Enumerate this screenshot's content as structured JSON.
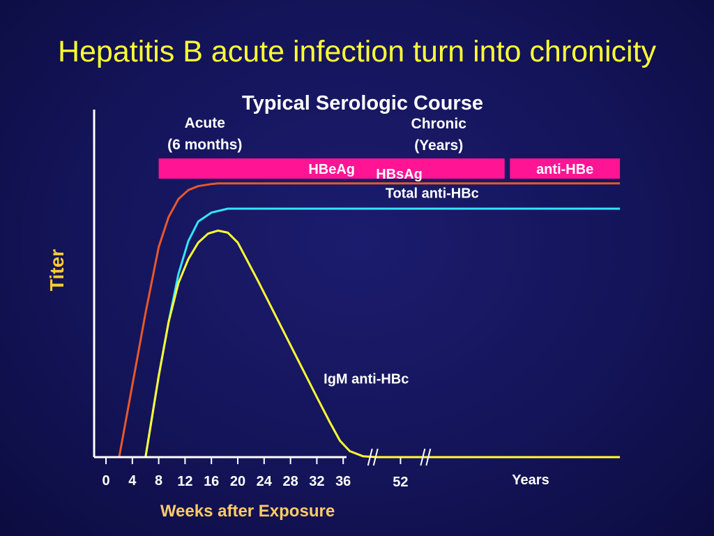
{
  "slide": {
    "title": "Hepatitis B acute infection turn into chronicity"
  },
  "colors": {
    "background": "#14145a",
    "title": "#ffff33",
    "axis_title": "#ffcc66",
    "bars": "#ff1493",
    "hbsag": "#e8582a",
    "total_anti_hbc": "#33e5ff",
    "igm_anti_hbc": "#ffff33",
    "text": "#ffffff"
  },
  "chart_data": {
    "type": "line",
    "title": "Typical Serologic Course",
    "xlabel": "Weeks after Exposure",
    "ylabel": "Titer",
    "x_ticks": [
      0,
      4,
      8,
      12,
      16,
      20,
      24,
      28,
      32,
      36,
      52
    ],
    "x_tick_labels": [
      "0",
      "4",
      "8",
      "12",
      "16",
      "20",
      "24",
      "28",
      "32",
      "36",
      "52"
    ],
    "x_extra_label": "Years",
    "xlim": [
      0,
      78
    ],
    "ylim": [
      0,
      100
    ],
    "axis_breaks": [
      40.5,
      48.5
    ],
    "phases": [
      {
        "label_line1": "Acute",
        "label_line2": "(6 months)",
        "x": 15
      },
      {
        "label_line1": "Chronic",
        "label_line2": "(Years)",
        "x": 50.5
      }
    ],
    "bars": [
      {
        "label": "HBeAg",
        "x_start": 8,
        "x_end": 60.5
      },
      {
        "label": "anti-HBe",
        "x_start": 61.3,
        "x_end": 78
      }
    ],
    "series": [
      {
        "name": "HBsAg",
        "x": [
          2,
          4,
          6,
          8,
          9.5,
          11,
          12.5,
          14,
          16,
          17,
          20,
          40,
          78
        ],
        "y": [
          0,
          24,
          48,
          70,
          80,
          86,
          89,
          90.3,
          91,
          91.2,
          91.2,
          91.2,
          91.2
        ]
      },
      {
        "name": "Total anti-HBc",
        "x": [
          6,
          8,
          9.5,
          11,
          12.5,
          14,
          16,
          18.5,
          20,
          40,
          78
        ],
        "y": [
          0,
          27,
          45,
          61,
          72,
          78.5,
          81.5,
          82.8,
          82.8,
          82.8,
          82.8
        ]
      },
      {
        "name": "IgM anti-HBc",
        "x": [
          6,
          8,
          9.5,
          11,
          12.5,
          14,
          15.5,
          17,
          18.5,
          20,
          23,
          26,
          29,
          32,
          34,
          35.5,
          37,
          39,
          41,
          48,
          52,
          60,
          78
        ],
        "y": [
          0,
          27,
          45,
          58,
          66,
          71.5,
          74.5,
          75.5,
          74.8,
          71.5,
          59,
          46,
          33,
          20,
          11.5,
          5.5,
          2,
          0.3,
          0,
          0,
          0,
          0,
          0
        ]
      }
    ],
    "series_labels": [
      {
        "name": "HBsAg",
        "x": 44.5,
        "y": 92.8
      },
      {
        "name": "Total anti-HBc",
        "x": 49.5,
        "y": 86.4
      },
      {
        "name": "IgM anti-HBc",
        "x": 39.5,
        "y": 24.5
      }
    ]
  }
}
